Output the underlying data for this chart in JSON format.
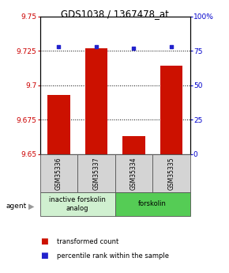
{
  "title": "GDS1038 / 1367478_at",
  "samples": [
    "GSM35336",
    "GSM35337",
    "GSM35334",
    "GSM35335"
  ],
  "bar_values": [
    9.693,
    9.727,
    9.663,
    9.714
  ],
  "percentile_values": [
    78,
    78,
    77,
    78
  ],
  "ylim_left": [
    9.65,
    9.75
  ],
  "ylim_right": [
    0,
    100
  ],
  "yticks_left": [
    9.65,
    9.675,
    9.7,
    9.725,
    9.75
  ],
  "yticks_right": [
    0,
    25,
    50,
    75,
    100
  ],
  "ytick_labels_left": [
    "9.65",
    "9.675",
    "9.7",
    "9.725",
    "9.75"
  ],
  "ytick_labels_right": [
    "0",
    "25",
    "50",
    "75",
    "100%"
  ],
  "hlines": [
    9.675,
    9.7,
    9.725
  ],
  "bar_color": "#cc1100",
  "dot_color": "#2222cc",
  "bar_width": 0.6,
  "groups": [
    {
      "label": "inactive forskolin\nanalog",
      "span": [
        0,
        1
      ],
      "color": "#d0f0d0"
    },
    {
      "label": "forskolin",
      "span": [
        2,
        3
      ],
      "color": "#55cc55"
    }
  ],
  "agent_label": "agent",
  "legend_items": [
    {
      "color": "#cc1100",
      "label": "transformed count"
    },
    {
      "color": "#2222cc",
      "label": "percentile rank within the sample"
    }
  ],
  "background_color": "#ffffff",
  "plot_bg_color": "#ffffff",
  "tick_label_fontsize": 6.5,
  "title_fontsize": 8.5,
  "sample_fontsize": 5.5,
  "group_fontsize": 6,
  "legend_fontsize": 6
}
